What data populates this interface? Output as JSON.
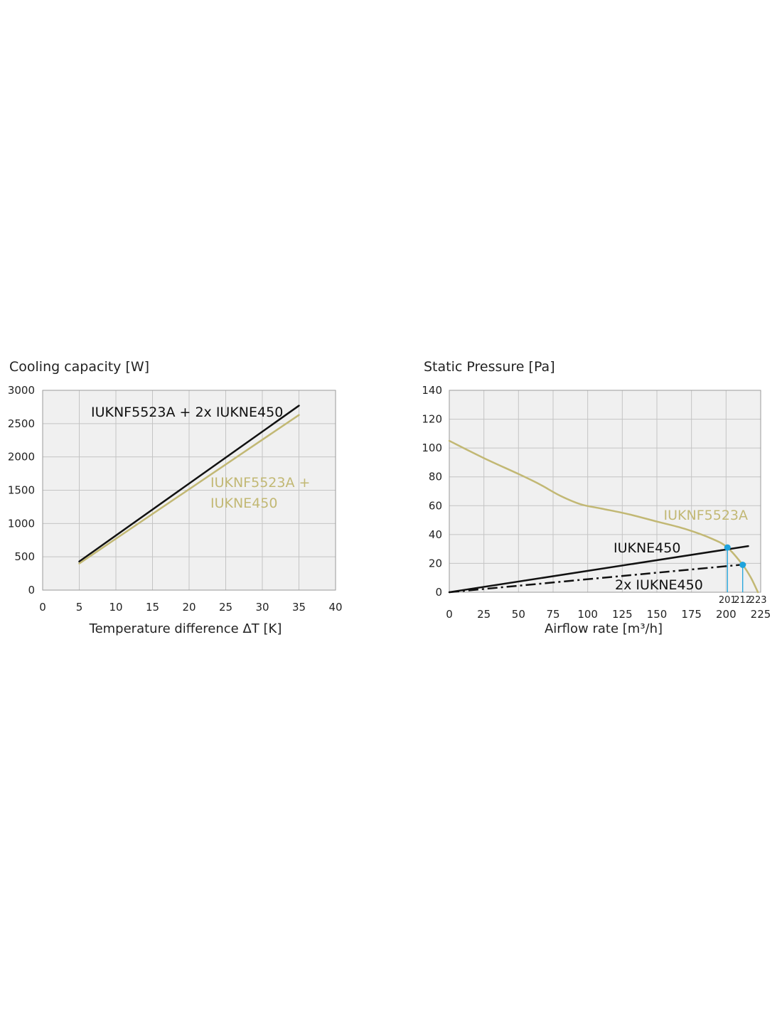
{
  "colors": {
    "plot_bg": "#f0f0f0",
    "grid": "#c4c4c4",
    "frame": "#9a9a9a",
    "black_series": "#111111",
    "gold_series": "#c2b874",
    "point": "#1ea3dc"
  },
  "chart_data": [
    {
      "type": "line",
      "title": "Cooling capacity [W]",
      "xlabel": "Temperature difference ΔT [K]",
      "ylabel": "Cooling capacity [W]",
      "xlim": [
        0,
        40
      ],
      "ylim": [
        0,
        3000
      ],
      "x_ticks": [
        0,
        5,
        10,
        15,
        20,
        25,
        30,
        35,
        40
      ],
      "y_ticks": [
        0,
        500,
        1000,
        1500,
        2000,
        2500,
        3000
      ],
      "grid": true,
      "series": [
        {
          "name": "IUKNF5523A + 2x IUKNE450",
          "color": "black_series",
          "style": "solid",
          "points": [
            [
              5,
              430
            ],
            [
              35,
              2770
            ]
          ]
        },
        {
          "name": "IUKNF5523A + IUKNE450",
          "color": "gold_series",
          "style": "solid",
          "points": [
            [
              5,
              400
            ],
            [
              35,
              2630
            ]
          ]
        }
      ],
      "annotations": [
        {
          "text": "IUKNF5523A + 2x IUKNE450",
          "color": "black_series"
        },
        {
          "text": "IUKNF5523A +",
          "color": "gold_series"
        },
        {
          "text": "IUKNE450",
          "color": "gold_series"
        }
      ]
    },
    {
      "type": "line",
      "title": "Static Pressure [Pa]",
      "xlabel": "Airflow rate [m³/h]",
      "ylabel": "Static Pressure [Pa]",
      "xlim": [
        0,
        225
      ],
      "ylim": [
        0,
        140
      ],
      "x_ticks": [
        0,
        25,
        50,
        75,
        100,
        125,
        150,
        175,
        200,
        225
      ],
      "y_ticks": [
        0,
        20,
        40,
        60,
        80,
        100,
        120,
        140
      ],
      "grid": true,
      "series": [
        {
          "name": "IUKNF5523A",
          "color": "gold_series",
          "style": "solid",
          "points": [
            [
              0,
              105
            ],
            [
              25,
              93
            ],
            [
              50,
              82
            ],
            [
              65,
              75
            ],
            [
              80,
              67
            ],
            [
              95,
              61
            ],
            [
              110,
              58
            ],
            [
              130,
              54
            ],
            [
              150,
              49
            ],
            [
              170,
              44
            ],
            [
              190,
              37
            ],
            [
              201,
              31
            ],
            [
              212,
              19
            ],
            [
              218,
              10
            ],
            [
              223,
              0
            ]
          ]
        },
        {
          "name": "IUKNE450",
          "color": "black_series",
          "style": "solid",
          "points": [
            [
              0,
              0
            ],
            [
              216,
              32
            ]
          ]
        },
        {
          "name": "2x IUKNE450",
          "color": "black_series",
          "style": "dashdot",
          "points": [
            [
              0,
              0
            ],
            [
              216,
              19.5
            ]
          ]
        }
      ],
      "operating_points": [
        {
          "x": 201,
          "y": 31,
          "label": "201"
        },
        {
          "x": 212,
          "y": 19,
          "label": "212"
        }
      ],
      "end_marker": {
        "x": 223,
        "label": "223"
      },
      "annotations": [
        {
          "text": "IUKNF5523A",
          "color": "gold_series"
        },
        {
          "text": "IUKNE450",
          "color": "black_series"
        },
        {
          "text": "2x IUKNE450",
          "color": "black_series"
        }
      ]
    }
  ]
}
